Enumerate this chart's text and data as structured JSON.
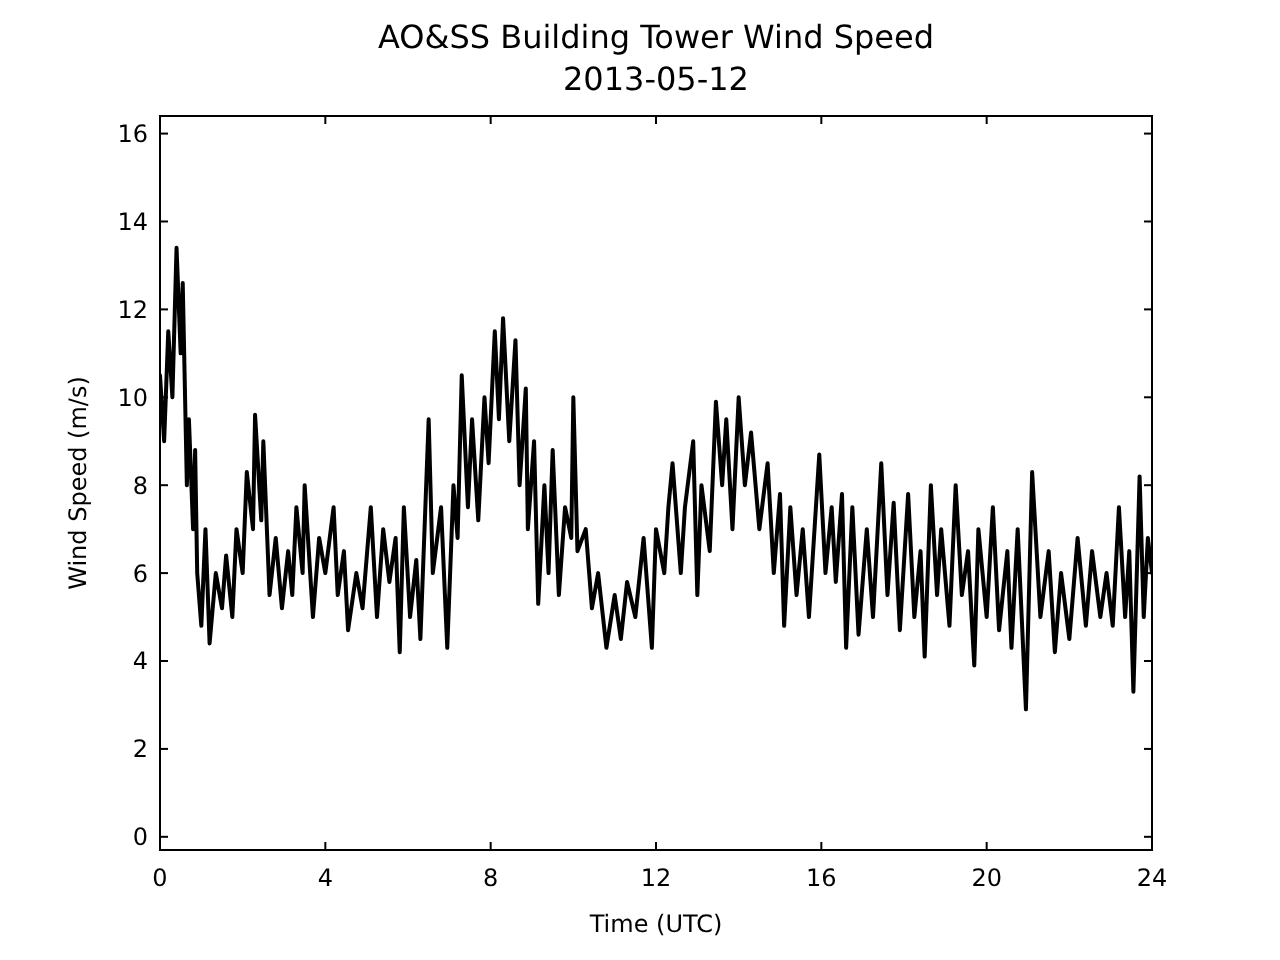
{
  "chart_data": {
    "type": "line",
    "title": "AO&SS Building Tower Wind Speed",
    "subtitle": "2013-05-12",
    "xlabel": "Time (UTC)",
    "ylabel": "Wind Speed (m/s)",
    "xlim": [
      0,
      24
    ],
    "xticks": [
      0,
      4,
      8,
      12,
      16,
      20,
      24
    ],
    "ylim": [
      -0.3,
      16.4
    ],
    "yticks": [
      0,
      2,
      4,
      6,
      8,
      10,
      12,
      14,
      16
    ],
    "grid": false,
    "marker": "none",
    "line_style": "solid",
    "series": [
      {
        "color": "#000000",
        "x": [
          0,
          0.1,
          0.2,
          0.3,
          0.4,
          0.5,
          0.55,
          0.65,
          0.7,
          0.8,
          0.85,
          0.9,
          1.0,
          1.1,
          1.2,
          1.35,
          1.5,
          1.6,
          1.75,
          1.85,
          2.0,
          2.1,
          2.25,
          2.3,
          2.45,
          2.5,
          2.65,
          2.8,
          2.95,
          3.1,
          3.2,
          3.3,
          3.45,
          3.5,
          3.7,
          3.85,
          4.0,
          4.2,
          4.3,
          4.45,
          4.55,
          4.75,
          4.9,
          5.1,
          5.25,
          5.4,
          5.55,
          5.7,
          5.8,
          5.9,
          6.05,
          6.2,
          6.3,
          6.5,
          6.6,
          6.8,
          6.95,
          7.1,
          7.2,
          7.3,
          7.45,
          7.55,
          7.7,
          7.85,
          7.95,
          8.1,
          8.2,
          8.3,
          8.45,
          8.6,
          8.7,
          8.85,
          8.9,
          9.05,
          9.15,
          9.3,
          9.4,
          9.5,
          9.65,
          9.8,
          9.95,
          10.0,
          10.1,
          10.3,
          10.45,
          10.6,
          10.8,
          11.0,
          11.15,
          11.3,
          11.5,
          11.7,
          11.9,
          12.0,
          12.2,
          12.3,
          12.4,
          12.6,
          12.7,
          12.9,
          13.0,
          13.1,
          13.3,
          13.45,
          13.6,
          13.7,
          13.85,
          14.0,
          14.15,
          14.3,
          14.5,
          14.7,
          14.85,
          15.0,
          15.1,
          15.25,
          15.4,
          15.55,
          15.7,
          15.95,
          16.1,
          16.25,
          16.35,
          16.5,
          16.6,
          16.75,
          16.9,
          17.1,
          17.25,
          17.45,
          17.6,
          17.75,
          17.9,
          18.1,
          18.25,
          18.4,
          18.5,
          18.65,
          18.8,
          18.9,
          19.1,
          19.25,
          19.4,
          19.55,
          19.7,
          19.8,
          20.0,
          20.15,
          20.3,
          20.5,
          20.6,
          20.75,
          20.95,
          21.1,
          21.3,
          21.5,
          21.65,
          21.8,
          22.0,
          22.2,
          22.4,
          22.55,
          22.75,
          22.9,
          23.05,
          23.2,
          23.35,
          23.45,
          23.55,
          23.7,
          23.8,
          23.9,
          24
        ],
        "values": [
          10.5,
          9,
          11.5,
          10,
          13.4,
          11,
          12.6,
          8,
          9.5,
          7,
          8.8,
          6,
          4.8,
          7,
          4.4,
          6,
          5.2,
          6.4,
          5,
          7,
          6,
          8.3,
          7,
          9.6,
          7.2,
          9,
          5.5,
          6.8,
          5.2,
          6.5,
          5.5,
          7.5,
          6,
          8,
          5,
          6.8,
          6,
          7.5,
          5.5,
          6.5,
          4.7,
          6,
          5.2,
          7.5,
          5,
          7,
          5.8,
          6.8,
          4.2,
          7.5,
          5,
          6.3,
          4.5,
          9.5,
          6,
          7.5,
          4.3,
          8,
          6.8,
          10.5,
          7.5,
          9.5,
          7.2,
          10,
          8.5,
          11.5,
          9.5,
          11.8,
          9,
          11.3,
          8,
          10.2,
          7,
          9,
          5.3,
          8,
          6,
          8.8,
          5.5,
          7.5,
          6.8,
          10,
          6.5,
          7,
          5.2,
          6,
          4.3,
          5.5,
          4.5,
          5.8,
          5,
          6.8,
          4.3,
          7,
          6,
          7.5,
          8.5,
          6,
          7.5,
          9,
          5.5,
          8,
          6.5,
          9.9,
          8,
          9.5,
          7,
          10,
          8,
          9.2,
          7,
          8.5,
          6,
          7.8,
          4.8,
          7.5,
          5.5,
          7,
          5,
          8.7,
          6,
          7.5,
          5.8,
          7.8,
          4.3,
          7.5,
          4.6,
          7,
          5,
          8.5,
          5.5,
          7.6,
          4.7,
          7.8,
          5,
          6.5,
          4.1,
          8,
          5.5,
          7,
          4.8,
          8,
          5.5,
          6.5,
          3.9,
          7,
          5,
          7.5,
          4.7,
          6.5,
          4.3,
          7,
          2.9,
          8.3,
          5,
          6.5,
          4.2,
          6,
          4.5,
          6.8,
          4.8,
          6.5,
          5,
          6,
          4.8,
          7.5,
          5,
          6.5,
          3.3,
          8.2,
          5,
          6.8,
          6
        ]
      }
    ]
  }
}
